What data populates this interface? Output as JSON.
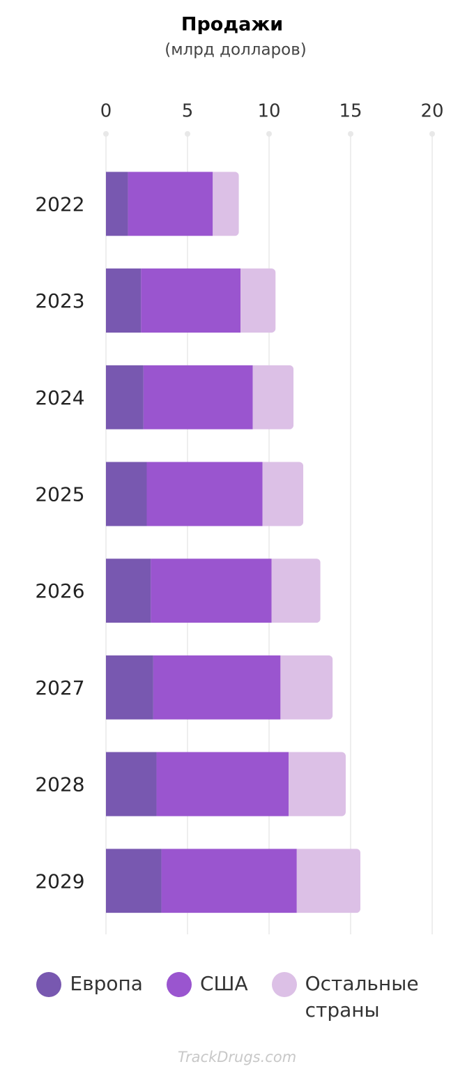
{
  "chart_data": {
    "type": "bar",
    "orientation": "horizontal",
    "stacked": true,
    "title": "Продажи",
    "subtitle": "(млрд долларов)",
    "categories": [
      "2022",
      "2023",
      "2024",
      "2025",
      "2026",
      "2027",
      "2028",
      "2029"
    ],
    "series": [
      {
        "name": "Европа",
        "color": "#7858b0",
        "values": [
          1.35,
          2.15,
          2.3,
          2.5,
          2.75,
          2.9,
          3.1,
          3.4
        ]
      },
      {
        "name": "США",
        "color": "#9a55cf",
        "values": [
          5.2,
          6.1,
          6.7,
          7.1,
          7.4,
          7.8,
          8.1,
          8.3
        ]
      },
      {
        "name": "Остальные страны",
        "color": "#dcc0e6",
        "values": [
          1.6,
          2.15,
          2.5,
          2.5,
          3.0,
          3.2,
          3.5,
          3.9
        ]
      }
    ],
    "xlim": [
      0,
      20
    ],
    "xticks": [
      0,
      5,
      10,
      15,
      20
    ],
    "grid": true,
    "watermark": "TrackDrugs.com"
  }
}
